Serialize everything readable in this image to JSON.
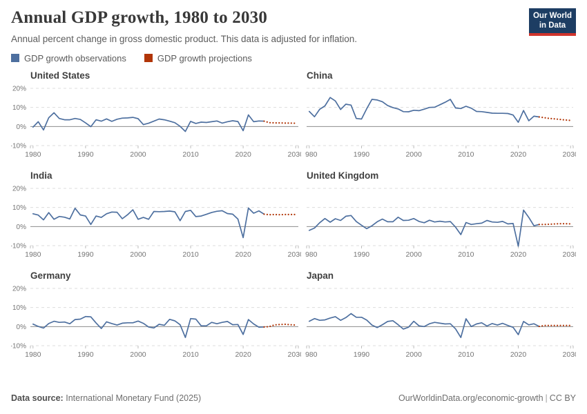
{
  "header": {
    "title": "Annual GDP growth, 1980 to 2030",
    "subtitle": "Annual percent change in gross domestic product. This data is adjusted for inflation.",
    "logo_line1": "Our World",
    "logo_line2": "in Data"
  },
  "legend": {
    "observations_label": "GDP growth observations",
    "projections_label": "GDP growth projections"
  },
  "colors": {
    "observation_line": "#4d6f9f",
    "projection_line": "#b13507",
    "grid_dashed": "#dcdcdc",
    "zero_line": "#8c8c8c",
    "axis_text": "#757575",
    "tick": "#bdbdbd",
    "logo_bg": "#1d3d63",
    "logo_bar": "#d0342c"
  },
  "footer": {
    "source_label": "Data source:",
    "source": "International Monetary Fund (2025)",
    "url": "OurWorldinData.org/economic-growth",
    "separator": "|",
    "license": "CC BY"
  },
  "chart_data": [
    {
      "type": "line",
      "title": "United States",
      "ylim": [
        -10,
        20
      ],
      "y_ticks": [
        20,
        10,
        0,
        -10
      ],
      "x_ticks": [
        1980,
        1990,
        2000,
        2010,
        2020,
        2030
      ],
      "observations_start_year": 1980,
      "observations": [
        -0.3,
        2.5,
        -1.8,
        4.6,
        7.2,
        4.2,
        3.5,
        3.5,
        4.2,
        3.7,
        1.9,
        -0.1,
        3.5,
        2.8,
        4.0,
        2.7,
        3.8,
        4.4,
        4.5,
        4.8,
        4.1,
        1.0,
        1.7,
        2.8,
        3.9,
        3.5,
        2.8,
        2.0,
        0.1,
        -2.6,
        2.7,
        1.6,
        2.3,
        2.1,
        2.5,
        2.9,
        1.8,
        2.5,
        3.0,
        2.6,
        -2.2,
        6.1,
        2.5,
        2.9,
        2.8
      ],
      "projections_start_year": 2025,
      "projections": [
        2.0,
        1.9,
        1.9,
        1.8,
        1.8,
        1.7
      ]
    },
    {
      "type": "line",
      "title": "China",
      "ylim": [
        -10,
        20
      ],
      "y_ticks": [
        20,
        10,
        0,
        -10
      ],
      "x_ticks": [
        1980,
        1990,
        2000,
        2010,
        2020,
        2030
      ],
      "observations_start_year": 1980,
      "observations": [
        7.9,
        5.1,
        9.0,
        10.8,
        15.2,
        13.4,
        8.9,
        11.7,
        11.2,
        4.2,
        3.9,
        9.3,
        14.2,
        13.9,
        13.0,
        11.0,
        9.9,
        9.2,
        7.8,
        7.7,
        8.5,
        8.3,
        9.1,
        10.0,
        10.1,
        11.4,
        12.7,
        14.2,
        9.7,
        9.4,
        10.6,
        9.6,
        7.9,
        7.8,
        7.4,
        7.0,
        6.9,
        6.9,
        6.8,
        6.0,
        2.2,
        8.4,
        3.0,
        5.4,
        5.0
      ],
      "projections_start_year": 2025,
      "projections": [
        4.6,
        4.2,
        4.0,
        3.7,
        3.4,
        3.2
      ]
    },
    {
      "type": "line",
      "title": "India",
      "ylim": [
        -10,
        20
      ],
      "y_ticks": [
        20,
        10,
        0,
        -10
      ],
      "x_ticks": [
        1980,
        1990,
        2000,
        2010,
        2020,
        2030
      ],
      "observations_start_year": 1980,
      "observations": [
        6.7,
        6.0,
        3.5,
        7.3,
        3.8,
        5.3,
        4.9,
        4.0,
        9.6,
        6.1,
        5.5,
        1.1,
        5.5,
        4.8,
        6.7,
        7.6,
        7.5,
        4.1,
        6.2,
        8.8,
        3.8,
        4.8,
        3.8,
        7.9,
        7.8,
        7.9,
        8.1,
        7.7,
        3.1,
        7.9,
        8.5,
        5.2,
        5.5,
        6.4,
        7.4,
        8.0,
        8.3,
        6.8,
        6.5,
        3.9,
        -5.8,
        9.7,
        7.0,
        8.2,
        6.5
      ],
      "projections_start_year": 2025,
      "projections": [
        6.2,
        6.3,
        6.2,
        6.3,
        6.3,
        6.3
      ]
    },
    {
      "type": "line",
      "title": "United Kingdom",
      "ylim": [
        -10,
        20
      ],
      "y_ticks": [
        20,
        10,
        0,
        -10
      ],
      "x_ticks": [
        1980,
        1990,
        2000,
        2010,
        2020,
        2030
      ],
      "observations_start_year": 1980,
      "observations": [
        -2.0,
        -0.8,
        2.0,
        4.2,
        2.3,
        4.1,
        3.2,
        5.4,
        5.8,
        2.6,
        0.7,
        -1.1,
        0.4,
        2.5,
        3.9,
        2.5,
        2.5,
        4.9,
        3.2,
        3.3,
        4.2,
        2.7,
        2.0,
        3.3,
        2.4,
        2.8,
        2.4,
        2.6,
        -0.3,
        -4.2,
        2.1,
        1.1,
        1.5,
        1.8,
        3.2,
        2.4,
        2.2,
        2.7,
        1.4,
        1.6,
        -10.3,
        8.6,
        4.8,
        0.4,
        1.1
      ],
      "projections_start_year": 2025,
      "projections": [
        1.1,
        1.2,
        1.4,
        1.5,
        1.5,
        1.4
      ]
    },
    {
      "type": "line",
      "title": "Germany",
      "ylim": [
        -10,
        20
      ],
      "y_ticks": [
        20,
        10,
        0,
        -10
      ],
      "x_ticks": [
        1980,
        1990,
        2000,
        2010,
        2020,
        2030
      ],
      "observations_start_year": 1980,
      "observations": [
        1.3,
        0.1,
        -0.8,
        1.6,
        2.8,
        2.2,
        2.4,
        1.5,
        3.7,
        3.9,
        5.3,
        5.1,
        1.9,
        -1.0,
        2.5,
        1.6,
        0.8,
        1.8,
        2.0,
        2.0,
        2.9,
        1.7,
        -0.2,
        -0.7,
        1.2,
        0.7,
        3.8,
        3.0,
        1.0,
        -5.7,
        4.2,
        3.9,
        0.4,
        0.4,
        2.2,
        1.5,
        2.2,
        2.7,
        1.0,
        1.1,
        -4.1,
        3.7,
        1.4,
        -0.3,
        -0.2
      ],
      "projections_start_year": 2025,
      "projections": [
        0.0,
        0.9,
        1.1,
        1.2,
        1.0,
        0.8
      ]
    },
    {
      "type": "line",
      "title": "Japan",
      "ylim": [
        -10,
        20
      ],
      "y_ticks": [
        20,
        10,
        0,
        -10
      ],
      "x_ticks": [
        1980,
        1990,
        2000,
        2010,
        2020,
        2030
      ],
      "observations_start_year": 1980,
      "observations": [
        2.8,
        4.2,
        3.3,
        3.5,
        4.5,
        5.2,
        3.3,
        4.7,
        6.8,
        4.9,
        4.9,
        3.4,
        0.8,
        -0.5,
        1.0,
        2.7,
        3.1,
        1.0,
        -1.3,
        -0.3,
        2.8,
        0.4,
        0.0,
        1.5,
        2.2,
        1.8,
        1.4,
        1.5,
        -1.2,
        -5.7,
        4.1,
        0.0,
        1.4,
        2.0,
        0.3,
        1.6,
        0.8,
        1.7,
        0.6,
        -0.4,
        -4.2,
        2.7,
        0.9,
        1.5,
        0.1
      ],
      "projections_start_year": 2025,
      "projections": [
        0.6,
        0.6,
        0.6,
        0.6,
        0.6,
        0.6
      ]
    }
  ]
}
